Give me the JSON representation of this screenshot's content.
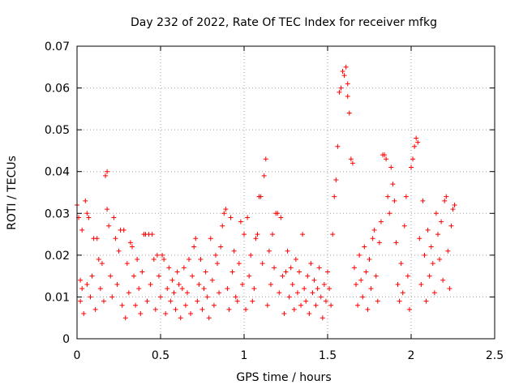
{
  "chart_data": {
    "type": "scatter",
    "title": "Day 232 of 2022, Rate Of TEC Index for receiver mfkg",
    "xlabel": "GPS time / hours",
    "ylabel": "ROTI / TECUs",
    "xlim": [
      0,
      2.5
    ],
    "ylim": [
      0,
      0.07
    ],
    "xticks": [
      "0",
      "0.5",
      "1",
      "1.5",
      "2",
      "2.5"
    ],
    "yticks": [
      "0",
      "0.01",
      "0.02",
      "0.03",
      "0.04",
      "0.05",
      "0.06",
      "0.07"
    ],
    "xtick_values": [
      0,
      0.5,
      1,
      1.5,
      2,
      2.5
    ],
    "ytick_values": [
      0,
      0.01,
      0.02,
      0.03,
      0.04,
      0.05,
      0.06,
      0.07
    ],
    "grid": true,
    "marker": "+",
    "color": "#ff0000",
    "series": [
      {
        "points": [
          [
            0.0,
            0.032
          ],
          [
            0.01,
            0.029
          ],
          [
            0.02,
            0.014
          ],
          [
            0.02,
            0.009
          ],
          [
            0.03,
            0.026
          ],
          [
            0.03,
            0.012
          ],
          [
            0.04,
            0.006
          ],
          [
            0.05,
            0.033
          ],
          [
            0.06,
            0.03
          ],
          [
            0.06,
            0.013
          ],
          [
            0.07,
            0.029
          ],
          [
            0.08,
            0.01
          ],
          [
            0.09,
            0.015
          ],
          [
            0.1,
            0.024
          ],
          [
            0.11,
            0.007
          ],
          [
            0.12,
            0.024
          ],
          [
            0.13,
            0.019
          ],
          [
            0.14,
            0.012
          ],
          [
            0.15,
            0.018
          ],
          [
            0.16,
            0.009
          ],
          [
            0.17,
            0.039
          ],
          [
            0.18,
            0.04
          ],
          [
            0.18,
            0.031
          ],
          [
            0.19,
            0.027
          ],
          [
            0.2,
            0.015
          ],
          [
            0.21,
            0.01
          ],
          [
            0.22,
            0.029
          ],
          [
            0.23,
            0.024
          ],
          [
            0.24,
            0.013
          ],
          [
            0.25,
            0.021
          ],
          [
            0.26,
            0.026
          ],
          [
            0.27,
            0.008
          ],
          [
            0.28,
            0.026
          ],
          [
            0.29,
            0.005
          ],
          [
            0.3,
            0.018
          ],
          [
            0.31,
            0.011
          ],
          [
            0.32,
            0.023
          ],
          [
            0.33,
            0.022
          ],
          [
            0.34,
            0.015
          ],
          [
            0.35,
            0.008
          ],
          [
            0.36,
            0.019
          ],
          [
            0.37,
            0.012
          ],
          [
            0.38,
            0.006
          ],
          [
            0.39,
            0.016
          ],
          [
            0.4,
            0.025
          ],
          [
            0.41,
            0.025
          ],
          [
            0.42,
            0.009
          ],
          [
            0.43,
            0.025
          ],
          [
            0.44,
            0.013
          ],
          [
            0.45,
            0.025
          ],
          [
            0.46,
            0.019
          ],
          [
            0.47,
            0.007
          ],
          [
            0.48,
            0.02
          ],
          [
            0.49,
            0.015
          ],
          [
            0.5,
            0.01
          ],
          [
            0.51,
            0.02
          ],
          [
            0.52,
            0.019
          ],
          [
            0.53,
            0.006
          ],
          [
            0.54,
            0.012
          ],
          [
            0.55,
            0.017
          ],
          [
            0.56,
            0.009
          ],
          [
            0.57,
            0.014
          ],
          [
            0.58,
            0.011
          ],
          [
            0.59,
            0.007
          ],
          [
            0.6,
            0.016
          ],
          [
            0.61,
            0.013
          ],
          [
            0.62,
            0.005
          ],
          [
            0.63,
            0.012
          ],
          [
            0.64,
            0.017
          ],
          [
            0.65,
            0.008
          ],
          [
            0.66,
            0.011
          ],
          [
            0.67,
            0.019
          ],
          [
            0.68,
            0.006
          ],
          [
            0.69,
            0.015
          ],
          [
            0.7,
            0.022
          ],
          [
            0.71,
            0.024
          ],
          [
            0.72,
            0.009
          ],
          [
            0.73,
            0.013
          ],
          [
            0.74,
            0.019
          ],
          [
            0.75,
            0.007
          ],
          [
            0.76,
            0.012
          ],
          [
            0.77,
            0.016
          ],
          [
            0.78,
            0.01
          ],
          [
            0.79,
            0.005
          ],
          [
            0.8,
            0.024
          ],
          [
            0.81,
            0.014
          ],
          [
            0.82,
            0.008
          ],
          [
            0.83,
            0.02
          ],
          [
            0.84,
            0.018
          ],
          [
            0.85,
            0.011
          ],
          [
            0.86,
            0.022
          ],
          [
            0.87,
            0.027
          ],
          [
            0.88,
            0.03
          ],
          [
            0.89,
            0.031
          ],
          [
            0.9,
            0.012
          ],
          [
            0.91,
            0.007
          ],
          [
            0.92,
            0.029
          ],
          [
            0.93,
            0.016
          ],
          [
            0.94,
            0.021
          ],
          [
            0.95,
            0.01
          ],
          [
            0.96,
            0.009
          ],
          [
            0.97,
            0.018
          ],
          [
            0.98,
            0.028
          ],
          [
            0.99,
            0.013
          ],
          [
            1.0,
            0.025
          ],
          [
            1.01,
            0.007
          ],
          [
            1.02,
            0.029
          ],
          [
            1.03,
            0.015
          ],
          [
            1.04,
            0.02
          ],
          [
            1.05,
            0.009
          ],
          [
            1.06,
            0.012
          ],
          [
            1.07,
            0.024
          ],
          [
            1.08,
            0.025
          ],
          [
            1.09,
            0.034
          ],
          [
            1.1,
            0.034
          ],
          [
            1.11,
            0.018
          ],
          [
            1.12,
            0.039
          ],
          [
            1.13,
            0.043
          ],
          [
            1.14,
            0.008
          ],
          [
            1.15,
            0.021
          ],
          [
            1.16,
            0.013
          ],
          [
            1.17,
            0.025
          ],
          [
            1.18,
            0.017
          ],
          [
            1.19,
            0.03
          ],
          [
            1.2,
            0.03
          ],
          [
            1.21,
            0.011
          ],
          [
            1.22,
            0.029
          ],
          [
            1.23,
            0.015
          ],
          [
            1.24,
            0.006
          ],
          [
            1.25,
            0.016
          ],
          [
            1.26,
            0.021
          ],
          [
            1.27,
            0.01
          ],
          [
            1.28,
            0.017
          ],
          [
            1.29,
            0.013
          ],
          [
            1.3,
            0.007
          ],
          [
            1.31,
            0.019
          ],
          [
            1.32,
            0.011
          ],
          [
            1.33,
            0.016
          ],
          [
            1.34,
            0.008
          ],
          [
            1.35,
            0.025
          ],
          [
            1.36,
            0.012
          ],
          [
            1.37,
            0.009
          ],
          [
            1.38,
            0.015
          ],
          [
            1.39,
            0.006
          ],
          [
            1.4,
            0.018
          ],
          [
            1.41,
            0.011
          ],
          [
            1.42,
            0.014
          ],
          [
            1.43,
            0.008
          ],
          [
            1.44,
            0.012
          ],
          [
            1.45,
            0.017
          ],
          [
            1.46,
            0.01
          ],
          [
            1.47,
            0.005
          ],
          [
            1.48,
            0.013
          ],
          [
            1.49,
            0.009
          ],
          [
            1.5,
            0.016
          ],
          [
            1.51,
            0.012
          ],
          [
            1.52,
            0.008
          ],
          [
            1.53,
            0.025
          ],
          [
            1.54,
            0.034
          ],
          [
            1.55,
            0.038
          ],
          [
            1.56,
            0.046
          ],
          [
            1.57,
            0.059
          ],
          [
            1.58,
            0.06
          ],
          [
            1.59,
            0.064
          ],
          [
            1.6,
            0.063
          ],
          [
            1.61,
            0.065
          ],
          [
            1.62,
            0.058
          ],
          [
            1.62,
            0.061
          ],
          [
            1.63,
            0.054
          ],
          [
            1.64,
            0.043
          ],
          [
            1.65,
            0.042
          ],
          [
            1.66,
            0.017
          ],
          [
            1.67,
            0.013
          ],
          [
            1.68,
            0.008
          ],
          [
            1.69,
            0.02
          ],
          [
            1.7,
            0.014
          ],
          [
            1.71,
            0.01
          ],
          [
            1.72,
            0.022
          ],
          [
            1.73,
            0.016
          ],
          [
            1.74,
            0.007
          ],
          [
            1.75,
            0.019
          ],
          [
            1.76,
            0.012
          ],
          [
            1.77,
            0.024
          ],
          [
            1.78,
            0.026
          ],
          [
            1.79,
            0.015
          ],
          [
            1.8,
            0.009
          ],
          [
            1.81,
            0.023
          ],
          [
            1.82,
            0.028
          ],
          [
            1.83,
            0.044
          ],
          [
            1.84,
            0.044
          ],
          [
            1.85,
            0.043
          ],
          [
            1.86,
            0.034
          ],
          [
            1.87,
            0.03
          ],
          [
            1.88,
            0.041
          ],
          [
            1.89,
            0.037
          ],
          [
            1.9,
            0.033
          ],
          [
            1.91,
            0.023
          ],
          [
            1.92,
            0.013
          ],
          [
            1.93,
            0.009
          ],
          [
            1.94,
            0.018
          ],
          [
            1.95,
            0.011
          ],
          [
            1.96,
            0.027
          ],
          [
            1.97,
            0.034
          ],
          [
            1.98,
            0.015
          ],
          [
            1.99,
            0.007
          ],
          [
            2.0,
            0.041
          ],
          [
            2.01,
            0.043
          ],
          [
            2.02,
            0.046
          ],
          [
            2.03,
            0.048
          ],
          [
            2.04,
            0.047
          ],
          [
            2.05,
            0.024
          ],
          [
            2.06,
            0.013
          ],
          [
            2.07,
            0.033
          ],
          [
            2.08,
            0.02
          ],
          [
            2.09,
            0.009
          ],
          [
            2.1,
            0.026
          ],
          [
            2.11,
            0.015
          ],
          [
            2.12,
            0.022
          ],
          [
            2.13,
            0.018
          ],
          [
            2.14,
            0.011
          ],
          [
            2.15,
            0.03
          ],
          [
            2.16,
            0.025
          ],
          [
            2.17,
            0.019
          ],
          [
            2.18,
            0.028
          ],
          [
            2.19,
            0.014
          ],
          [
            2.2,
            0.033
          ],
          [
            2.21,
            0.034
          ],
          [
            2.22,
            0.021
          ],
          [
            2.23,
            0.012
          ],
          [
            2.24,
            0.027
          ],
          [
            2.25,
            0.031
          ],
          [
            2.26,
            0.032
          ]
        ]
      }
    ]
  }
}
